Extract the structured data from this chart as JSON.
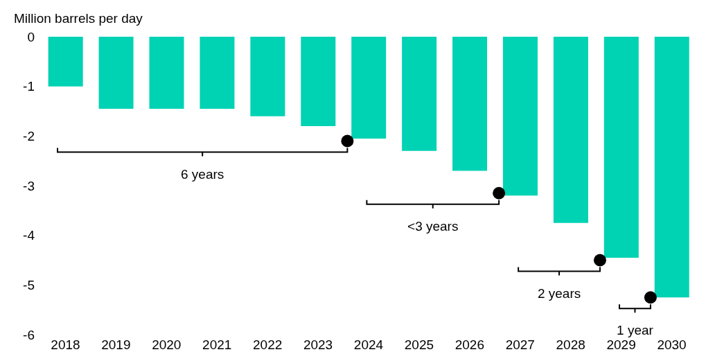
{
  "chart_data": {
    "type": "bar",
    "ylabel": "Million barrels per day",
    "categories": [
      "2018",
      "2019",
      "2020",
      "2021",
      "2022",
      "2023",
      "2024",
      "2025",
      "2026",
      "2027",
      "2028",
      "2029",
      "2030"
    ],
    "series": [
      {
        "color": "#00d2b4",
        "values": [
          -1.0,
          -1.45,
          -1.45,
          -1.45,
          -1.6,
          -1.8,
          -2.05,
          -2.3,
          -2.7,
          -3.2,
          -3.75,
          -4.45,
          -5.25
        ]
      },
      {
        "type": "scatter",
        "color": "#000000",
        "marker": "circle",
        "values": [
          null,
          null,
          null,
          null,
          null,
          null,
          -2.1,
          null,
          null,
          -3.15,
          null,
          -4.5,
          -5.25
        ]
      }
    ],
    "ylim": [
      -6,
      0
    ],
    "yticks": [
      -6,
      -5,
      -4,
      -3,
      -2,
      -1,
      0
    ],
    "grid": false,
    "legend": false,
    "annotations": [
      "6 years",
      "<3 years",
      "2 years",
      "1 year"
    ]
  }
}
